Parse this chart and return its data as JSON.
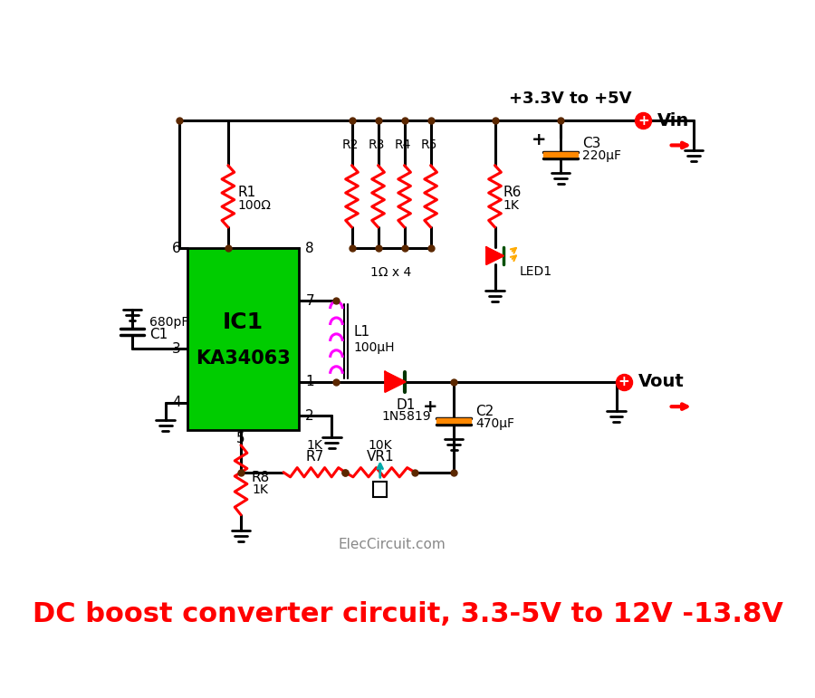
{
  "title": "DC boost converter circuit, 3.3-5V to 12V -13.8V",
  "title_color": "#ff0000",
  "title_fontsize": 22,
  "bg_color": "#ffffff",
  "subtitle": "+3.3V to +5V",
  "watermark": "ElecCircuit.com",
  "ic_label1": "IC1",
  "ic_label2": "KA34063",
  "ic_color": "#00cc00",
  "wire_color": "#000000",
  "resistor_color_red": "#ff0000",
  "node_color": "#5c2800",
  "inductor_color": "#ff00ff",
  "cap_color": "#ff8800"
}
